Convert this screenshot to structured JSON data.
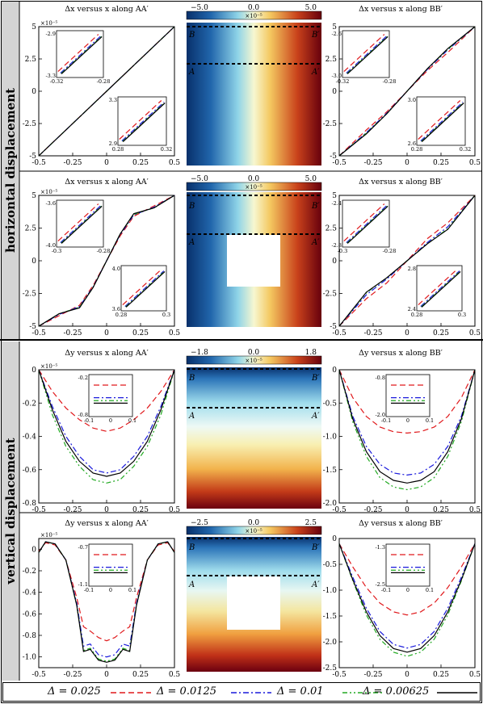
{
  "sections": [
    {
      "label": "horizontal displacement"
    },
    {
      "label": "vertical displacement"
    }
  ],
  "panels": [
    {
      "title_left": "Δx versus x along AA′",
      "title_right": "Δx versus x along BB′",
      "colorbar": {
        "min": "−5.0",
        "mid": "0.0",
        "max": "5.0",
        "exp": "×10⁻⁵"
      },
      "labels": {
        "B": "B",
        "Bp": "B′",
        "A": "A",
        "Ap": "A′"
      }
    },
    {
      "title_left": "Δx versus x along AA′",
      "title_right": "Δx versus x along BB′",
      "colorbar": {
        "min": "−5.0",
        "mid": "0.0",
        "max": "5.0",
        "exp": "×10⁻⁵"
      },
      "labels": {
        "B": "B",
        "Bp": "B′",
        "A": "A",
        "Ap": "A′"
      }
    },
    {
      "title_left": "Δy versus x along AA′",
      "title_right": "Δy versus x along BB′",
      "colorbar": {
        "min": "−1.8",
        "mid": "0.0",
        "max": "1.8",
        "exp": "×10⁻⁵"
      },
      "labels": {
        "B": "B",
        "Bp": "B′",
        "A": "A",
        "Ap": "A′"
      }
    },
    {
      "title_left": "Δy versus x along AA′",
      "title_right": "Δy versus x along BB′",
      "colorbar": {
        "min": "−2.5",
        "mid": "0.0",
        "max": "2.5",
        "exp": "×10⁻⁵"
      },
      "labels": {
        "B": "B",
        "Bp": "B′",
        "A": "A",
        "Ap": "A′"
      }
    }
  ],
  "legend": [
    {
      "label": "Δ = 0.025",
      "color": "#e0191c",
      "dash": "7,4"
    },
    {
      "label": "Δ = 0.0125",
      "color": "#1a1adb",
      "dash": "7,3,2,3"
    },
    {
      "label": "Δ = 0.01",
      "color": "#22aa22",
      "dash": "6,3,2,3,2,3"
    },
    {
      "label": "Δ = 0.00625",
      "color": "#000000",
      "dash": ""
    }
  ],
  "chart_data": [
    {
      "type": "line",
      "title": "Δx versus x along AA′",
      "xlim": [
        -0.5,
        0.5
      ],
      "ylim": [
        -5,
        5
      ],
      "y_exponent": "×10⁻⁵",
      "xticks": [
        "-0.5",
        "-0.25",
        "0",
        "0.25",
        "0.5"
      ],
      "yticks": [
        "-5",
        "-2.5",
        "0",
        "2.5",
        "5"
      ],
      "x": [
        -0.5,
        0.5
      ],
      "series": [
        {
          "name": "Δ = 0.025",
          "y": [
            -5.0,
            5.0
          ]
        },
        {
          "name": "Δ = 0.0125",
          "y": [
            -5.0,
            5.0
          ]
        },
        {
          "name": "Δ = 0.01",
          "y": [
            -5.0,
            5.0
          ]
        },
        {
          "name": "Δ = 0.00625",
          "y": [
            -5.0,
            5.0
          ]
        }
      ],
      "insets": [
        {
          "xticks": [
            "-0.32",
            "-0.28"
          ],
          "yticks": [
            "-2.9",
            "-3.3"
          ]
        },
        {
          "xticks": [
            "0.28",
            "0.32"
          ],
          "yticks": [
            "3.3",
            "2.9"
          ]
        }
      ]
    },
    {
      "type": "line",
      "title": "Δx versus x along BB′",
      "xlim": [
        -0.5,
        0.5
      ],
      "ylim": [
        -5,
        5
      ],
      "y_exponent": "",
      "xticks": [
        "-0.5",
        "-0.25",
        "0",
        "0.25",
        "0.5"
      ],
      "yticks": [
        "-5",
        "-2.5",
        "0",
        "2.5",
        "5"
      ],
      "x": [
        -0.5,
        -0.3,
        -0.15,
        0,
        0.15,
        0.3,
        0.5
      ],
      "series": [
        {
          "name": "Δ = 0.025",
          "y": [
            -5.0,
            -3.0,
            -1.6,
            0,
            1.6,
            3.0,
            5.0
          ]
        },
        {
          "name": "Δ = 0.0125",
          "y": [
            -5.0,
            -3.2,
            -1.7,
            0,
            1.7,
            3.2,
            5.0
          ]
        },
        {
          "name": "Δ = 0.01",
          "y": [
            -5.0,
            -3.25,
            -1.75,
            0,
            1.75,
            3.25,
            5.0
          ]
        },
        {
          "name": "Δ = 0.00625",
          "y": [
            -5.0,
            -3.3,
            -1.75,
            0,
            1.75,
            3.3,
            5.0
          ]
        }
      ],
      "insets": [
        {
          "xticks": [
            "-0.32",
            "-0.28"
          ],
          "yticks": [
            "-2.6",
            "-3.0"
          ]
        },
        {
          "xticks": [
            "0.28",
            "0.32"
          ],
          "yticks": [
            "3.0",
            "2.6"
          ]
        }
      ]
    },
    {
      "type": "line",
      "title": "Δx versus x along AA′",
      "xlim": [
        -0.5,
        0.5
      ],
      "ylim": [
        -5,
        5
      ],
      "y_exponent": "×10⁻⁵",
      "xticks": [
        "-0.5",
        "-0.25",
        "0",
        "0.25",
        "0.5"
      ],
      "yticks": [
        "-5",
        "-2.5",
        "0",
        "2.5",
        "5"
      ],
      "x": [
        -0.5,
        -0.35,
        -0.2,
        -0.1,
        0,
        0.1,
        0.2,
        0.35,
        0.5
      ],
      "series": [
        {
          "name": "Δ = 0.025",
          "y": [
            -5.0,
            -4.2,
            -3.4,
            -1.9,
            0,
            1.9,
            3.4,
            4.2,
            5.0
          ]
        },
        {
          "name": "Δ = 0.0125",
          "y": [
            -5.0,
            -4.1,
            -3.5,
            -2.0,
            0,
            2.0,
            3.5,
            4.1,
            5.0
          ]
        },
        {
          "name": "Δ = 0.01",
          "y": [
            -5.0,
            -4.05,
            -3.55,
            -2.05,
            0,
            2.05,
            3.55,
            4.05,
            5.0
          ]
        },
        {
          "name": "Δ = 0.00625",
          "y": [
            -5.0,
            -4.05,
            -3.6,
            -2.05,
            0,
            2.05,
            3.6,
            4.05,
            5.0
          ]
        }
      ],
      "insets": [
        {
          "xticks": [
            "-0.3",
            "-0.28"
          ],
          "yticks": [
            "-3.6",
            "-4.0"
          ]
        },
        {
          "xticks": [
            "0.28",
            "0.3"
          ],
          "yticks": [
            "4.0",
            "3.6"
          ]
        }
      ]
    },
    {
      "type": "line",
      "title": "Δx versus x along BB′",
      "xlim": [
        -0.5,
        0.5
      ],
      "ylim": [
        -5,
        5
      ],
      "y_exponent": "",
      "xticks": [
        "-0.5",
        "-0.25",
        "0",
        "0.25",
        "0.5"
      ],
      "yticks": [
        "-5",
        "-2.5",
        "0",
        "2.5",
        "5"
      ],
      "x": [
        -0.5,
        -0.3,
        -0.15,
        0,
        0.15,
        0.3,
        0.5
      ],
      "series": [
        {
          "name": "Δ = 0.025",
          "y": [
            -5.0,
            -2.9,
            -1.7,
            0,
            1.7,
            2.9,
            5.0
          ]
        },
        {
          "name": "Δ = 0.0125",
          "y": [
            -5.0,
            -2.6,
            -1.4,
            0,
            1.4,
            2.6,
            5.0
          ]
        },
        {
          "name": "Δ = 0.01",
          "y": [
            -5.0,
            -2.45,
            -1.3,
            0,
            1.3,
            2.45,
            5.0
          ]
        },
        {
          "name": "Δ = 0.00625",
          "y": [
            -5.0,
            -2.4,
            -1.3,
            0,
            1.3,
            2.4,
            5.0
          ]
        }
      ],
      "insets": [
        {
          "xticks": [
            "-0.3",
            "-0.28"
          ],
          "yticks": [
            "-2.4",
            "-2.8"
          ]
        },
        {
          "xticks": [
            "0.28",
            "0.3"
          ],
          "yticks": [
            "2.8",
            "2.4"
          ]
        }
      ]
    },
    {
      "type": "line",
      "title": "Δy versus x along AA′",
      "xlim": [
        -0.5,
        0.5
      ],
      "ylim": [
        -0.8,
        0
      ],
      "y_exponent": "×10⁻⁵",
      "xticks": [
        "-0.5",
        "-0.25",
        "0",
        "0.25",
        "0.5"
      ],
      "yticks": [
        "0",
        "-0.2",
        "-0.4",
        "-0.6",
        "-0.8"
      ],
      "x": [
        -0.5,
        -0.4,
        -0.3,
        -0.2,
        -0.1,
        0,
        0.1,
        0.2,
        0.3,
        0.4,
        0.5
      ],
      "series": [
        {
          "name": "Δ = 0.025",
          "y": [
            0,
            -0.13,
            -0.23,
            -0.3,
            -0.35,
            -0.37,
            -0.35,
            -0.3,
            -0.23,
            -0.13,
            0
          ]
        },
        {
          "name": "Δ = 0.0125",
          "y": [
            0,
            -0.22,
            -0.4,
            -0.52,
            -0.6,
            -0.62,
            -0.6,
            -0.52,
            -0.4,
            -0.22,
            0
          ]
        },
        {
          "name": "Δ = 0.01",
          "y": [
            0,
            -0.27,
            -0.46,
            -0.58,
            -0.66,
            -0.68,
            -0.66,
            -0.58,
            -0.46,
            -0.27,
            0
          ]
        },
        {
          "name": "Δ = 0.00625",
          "y": [
            0,
            -0.24,
            -0.43,
            -0.55,
            -0.62,
            -0.64,
            -0.62,
            -0.55,
            -0.43,
            -0.24,
            0
          ]
        }
      ],
      "insets": [
        {
          "xticks": [
            "-0.1",
            "0",
            "0.1"
          ],
          "yticks": [
            "-0.2",
            "-0.8"
          ]
        }
      ]
    },
    {
      "type": "line",
      "title": "Δy versus x along BB′",
      "xlim": [
        -0.5,
        0.5
      ],
      "ylim": [
        -2.0,
        0
      ],
      "y_exponent": "",
      "xticks": [
        "-0.5",
        "-0.25",
        "0",
        "0.25",
        "0.5"
      ],
      "yticks": [
        "0",
        "-0.5",
        "-1.0",
        "-1.5",
        "-2.0"
      ],
      "x": [
        -0.5,
        -0.4,
        -0.3,
        -0.2,
        -0.1,
        0,
        0.1,
        0.2,
        0.3,
        0.4,
        0.5
      ],
      "series": [
        {
          "name": "Δ = 0.025",
          "y": [
            0,
            -0.42,
            -0.7,
            -0.86,
            -0.93,
            -0.95,
            -0.93,
            -0.86,
            -0.7,
            -0.42,
            0
          ]
        },
        {
          "name": "Δ = 0.0125",
          "y": [
            0,
            -0.7,
            -1.15,
            -1.42,
            -1.55,
            -1.58,
            -1.55,
            -1.42,
            -1.15,
            -0.7,
            0
          ]
        },
        {
          "name": "Δ = 0.01",
          "y": [
            0,
            -0.78,
            -1.3,
            -1.62,
            -1.76,
            -1.8,
            -1.76,
            -1.62,
            -1.3,
            -0.78,
            0
          ]
        },
        {
          "name": "Δ = 0.00625",
          "y": [
            0,
            -0.74,
            -1.23,
            -1.53,
            -1.66,
            -1.7,
            -1.66,
            -1.53,
            -1.23,
            -0.74,
            0
          ]
        }
      ],
      "insets": [
        {
          "xticks": [
            "-0.1",
            "0",
            "0.1"
          ],
          "yticks": [
            "-0.8",
            "-2.0"
          ]
        }
      ]
    },
    {
      "type": "line",
      "title": "Δy versus x along AA′",
      "xlim": [
        -0.5,
        0.5
      ],
      "ylim": [
        -1.1,
        0.1
      ],
      "y_exponent": "×10⁻⁵",
      "xticks": [
        "-0.5",
        "-0.25",
        "0",
        "0.25",
        "0.5"
      ],
      "yticks": [
        "0",
        "-0.2",
        "-0.4",
        "-0.6",
        "-0.8",
        "-1.0"
      ],
      "x": [
        -0.5,
        -0.45,
        -0.38,
        -0.3,
        -0.22,
        -0.17,
        -0.12,
        -0.06,
        0,
        0.06,
        0.12,
        0.17,
        0.22,
        0.3,
        0.38,
        0.45,
        0.5
      ],
      "series": [
        {
          "name": "Δ = 0.025",
          "y": [
            -0.02,
            0.06,
            0.04,
            -0.1,
            -0.45,
            -0.72,
            -0.76,
            -0.82,
            -0.85,
            -0.82,
            -0.76,
            -0.72,
            -0.45,
            -0.1,
            0.04,
            0.06,
            -0.02
          ]
        },
        {
          "name": "Δ = 0.0125",
          "y": [
            -0.03,
            0.07,
            0.05,
            -0.1,
            -0.5,
            -0.9,
            -0.88,
            -0.98,
            -1.0,
            -0.98,
            -0.88,
            -0.9,
            -0.5,
            -0.1,
            0.05,
            0.07,
            -0.03
          ]
        },
        {
          "name": "Δ = 0.01",
          "y": [
            -0.03,
            0.07,
            0.05,
            -0.1,
            -0.52,
            -0.94,
            -0.92,
            -1.02,
            -1.04,
            -1.02,
            -0.92,
            -0.94,
            -0.52,
            -0.1,
            0.05,
            0.07,
            -0.03
          ]
        },
        {
          "name": "Δ = 0.00625",
          "y": [
            -0.03,
            0.07,
            0.05,
            -0.1,
            -0.52,
            -0.95,
            -0.93,
            -1.03,
            -1.05,
            -1.03,
            -0.93,
            -0.95,
            -0.52,
            -0.1,
            0.05,
            0.07,
            -0.03
          ]
        }
      ],
      "insets": [
        {
          "xticks": [
            "-0.1",
            "0",
            "0.1"
          ],
          "yticks": [
            "-0.7",
            "-1.1"
          ]
        }
      ]
    },
    {
      "type": "line",
      "title": "Δy versus x along BB′",
      "xlim": [
        -0.5,
        0.5
      ],
      "ylim": [
        -2.5,
        0
      ],
      "y_exponent": "",
      "xticks": [
        "-0.5",
        "-0.25",
        "0",
        "0.25",
        "0.5"
      ],
      "yticks": [
        "0",
        "-0.5",
        "-1.0",
        "-1.5",
        "-2.0",
        "-2.5"
      ],
      "x": [
        -0.5,
        -0.4,
        -0.3,
        -0.2,
        -0.1,
        0,
        0.1,
        0.2,
        0.3,
        0.4,
        0.5
      ],
      "series": [
        {
          "name": "Δ = 0.025",
          "y": [
            -0.1,
            -0.55,
            -0.95,
            -1.25,
            -1.42,
            -1.48,
            -1.42,
            -1.25,
            -0.95,
            -0.55,
            -0.1
          ]
        },
        {
          "name": "Δ = 0.0125",
          "y": [
            -0.1,
            -0.75,
            -1.35,
            -1.8,
            -2.05,
            -2.12,
            -2.05,
            -1.8,
            -1.35,
            -0.75,
            -0.1
          ]
        },
        {
          "name": "Δ = 0.01",
          "y": [
            -0.1,
            -0.82,
            -1.48,
            -1.95,
            -2.2,
            -2.28,
            -2.2,
            -1.95,
            -1.48,
            -0.82,
            -0.1
          ]
        },
        {
          "name": "Δ = 0.00625",
          "y": [
            -0.1,
            -0.8,
            -1.42,
            -1.88,
            -2.13,
            -2.2,
            -2.13,
            -1.88,
            -1.42,
            -0.8,
            -0.1
          ]
        }
      ],
      "insets": [
        {
          "xticks": [
            "-0.1",
            "0",
            "0.1"
          ],
          "yticks": [
            "-1.3",
            "-2.5"
          ]
        }
      ]
    }
  ]
}
